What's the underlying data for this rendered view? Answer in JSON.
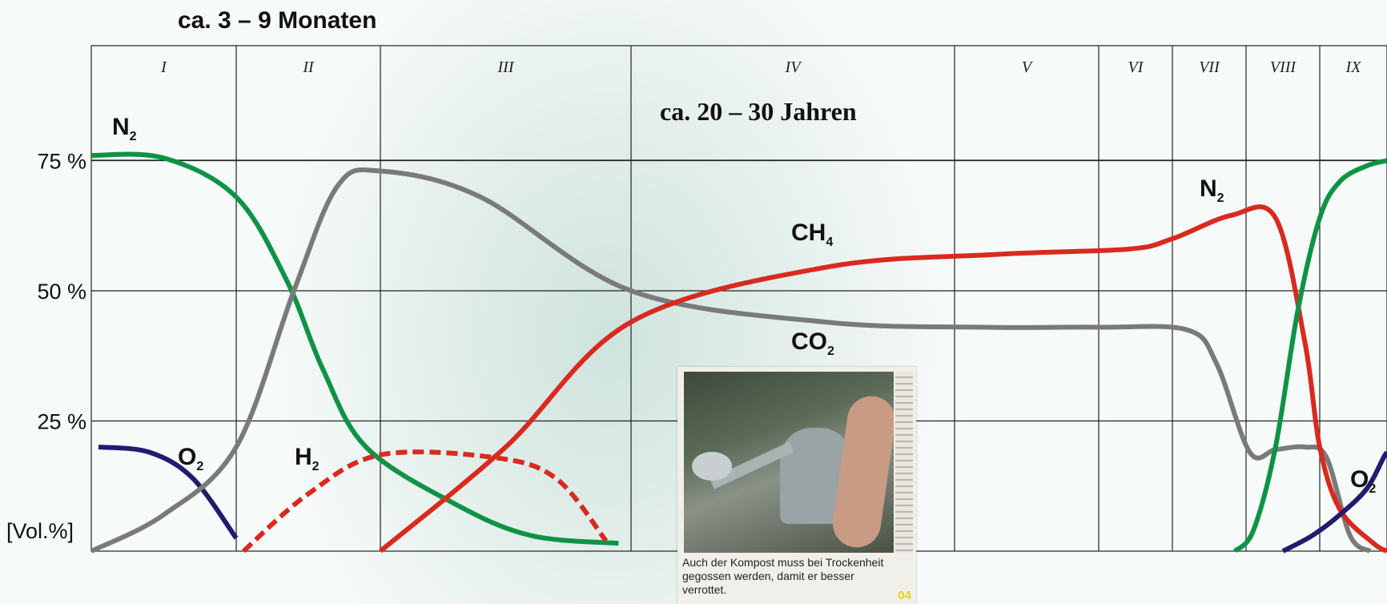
{
  "header": {
    "top_title": "ca. 3 – 9 Monaten",
    "mid_title": "ca. 20 – 30 Jahren"
  },
  "chart_data": {
    "type": "line",
    "title": "",
    "xlabel": "",
    "ylabel": "[Vol.%]",
    "phases": [
      "I",
      "II",
      "III",
      "IV",
      "V",
      "VI",
      "VII",
      "VIII",
      "IX"
    ],
    "y_ticks": [
      "75 %",
      "50 %",
      "25 %"
    ],
    "y_tick_values": [
      75,
      50,
      25
    ],
    "ylim": [
      0,
      100
    ],
    "grid": true,
    "series_labels": [
      {
        "key": "N2_left",
        "text": "N",
        "sub": "2"
      },
      {
        "key": "O2_left",
        "text": "O",
        "sub": "2"
      },
      {
        "key": "H2",
        "text": "H",
        "sub": "2"
      },
      {
        "key": "CH4",
        "text": "CH",
        "sub": "4"
      },
      {
        "key": "CO2",
        "text": "CO",
        "sub": "2"
      },
      {
        "key": "N2_right",
        "text": "N",
        "sub": "2"
      },
      {
        "key": "O2_right",
        "text": "O",
        "sub": "2"
      }
    ],
    "series": [
      {
        "name": "N2",
        "segment": "phase I–III",
        "color": "#0e9346",
        "points": [
          [
            0.0,
            76
          ],
          [
            0.5,
            75.5
          ],
          [
            1.0,
            68
          ],
          [
            1.35,
            52
          ],
          [
            1.6,
            35
          ],
          [
            1.9,
            20
          ],
          [
            2.3,
            9
          ],
          [
            2.6,
            3
          ],
          [
            2.95,
            1.5
          ]
        ]
      },
      {
        "name": "O2",
        "segment": "phase I",
        "color": "#241a6e",
        "points": [
          [
            0.05,
            20
          ],
          [
            0.4,
            19
          ],
          [
            0.7,
            14
          ],
          [
            1.0,
            2.5
          ]
        ]
      },
      {
        "name": "CO2",
        "color": "#7a7a7a",
        "points": [
          [
            0.0,
            0
          ],
          [
            0.5,
            7
          ],
          [
            1.0,
            20
          ],
          [
            1.4,
            50
          ],
          [
            1.7,
            70
          ],
          [
            2.0,
            73
          ],
          [
            2.4,
            68
          ],
          [
            3.0,
            50
          ],
          [
            3.6,
            44
          ],
          [
            4.2,
            43
          ],
          [
            5.0,
            43
          ],
          [
            6.2,
            42.5
          ],
          [
            6.6,
            36
          ],
          [
            7.05,
            19
          ],
          [
            7.4,
            19.5
          ],
          [
            7.8,
            20
          ],
          [
            8.1,
            18
          ],
          [
            8.45,
            3
          ],
          [
            8.75,
            0
          ]
        ]
      },
      {
        "name": "H2",
        "segment": "phase II–III",
        "color": "#d82a1f",
        "dashed": true,
        "points": [
          [
            1.05,
            0
          ],
          [
            1.5,
            11
          ],
          [
            2.0,
            18.5
          ],
          [
            2.45,
            18
          ],
          [
            2.7,
            14
          ],
          [
            2.9,
            2
          ]
        ]
      },
      {
        "name": "CH4",
        "color": "#d82a1f",
        "points": [
          [
            2.0,
            0
          ],
          [
            2.5,
            20
          ],
          [
            3.0,
            44
          ],
          [
            3.6,
            54.5
          ],
          [
            4.3,
            57
          ],
          [
            5.4,
            58
          ],
          [
            6.0,
            60
          ],
          [
            6.8,
            64.5
          ],
          [
            7.4,
            64
          ],
          [
            7.8,
            40
          ],
          [
            8.0,
            20
          ],
          [
            8.3,
            8
          ],
          [
            8.8,
            1.5
          ],
          [
            9.0,
            0
          ]
        ]
      },
      {
        "name": "N2",
        "segment": "phase VI–IX",
        "color": "#0e9346",
        "points": [
          [
            6.85,
            0
          ],
          [
            7.1,
            4
          ],
          [
            7.4,
            20
          ],
          [
            7.7,
            46
          ],
          [
            8.0,
            64
          ],
          [
            8.3,
            71
          ],
          [
            8.7,
            74
          ],
          [
            9.0,
            75
          ]
        ]
      },
      {
        "name": "O2",
        "segment": "phase VII–IX",
        "color": "#241a6e",
        "points": [
          [
            7.5,
            0
          ],
          [
            7.9,
            3
          ],
          [
            8.3,
            7
          ],
          [
            8.7,
            12
          ],
          [
            8.95,
            18
          ],
          [
            9.0,
            19
          ]
        ]
      }
    ]
  },
  "photo": {
    "caption": "Auch der Kompost muss bei Trockenheit gegossen werden, damit er besser verrottet.",
    "page_number": "04"
  }
}
